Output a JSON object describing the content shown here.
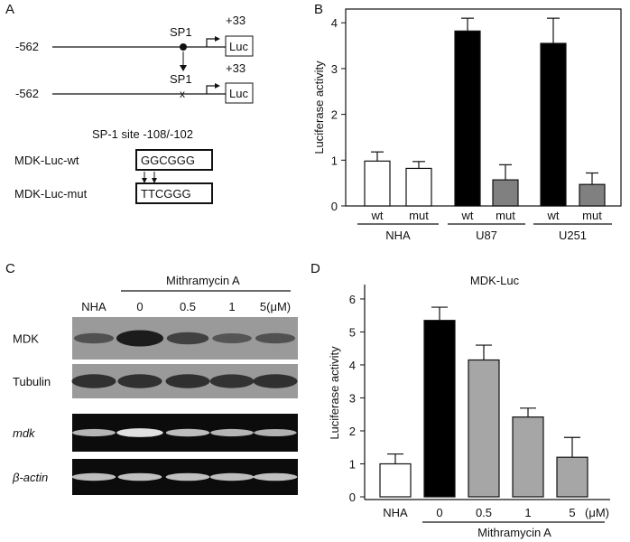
{
  "panels": {
    "A": {
      "letter": "A",
      "constructs": [
        {
          "start": "-562",
          "end": "+33",
          "site": "SP1",
          "reporter": "Luc",
          "mutated": false
        },
        {
          "start": "-562",
          "end": "+33",
          "site": "SP1",
          "reporter": "Luc",
          "mutated": true
        }
      ],
      "mut_mark": "x",
      "site_title": "SP-1 site -108/-102",
      "wt_label": "MDK-Luc-wt",
      "wt_seq": "GGCGGG",
      "mut_label": "MDK-Luc-mut",
      "mut_seq": "TTCGGG"
    },
    "B": {
      "letter": "B"
    },
    "C": {
      "letter": "C",
      "treatment": "Mithramycin A",
      "lanes": [
        "NHA",
        "0",
        "0.5",
        "1",
        "5(μM)"
      ],
      "rows": [
        "MDK",
        "Tubulin",
        "mdk",
        "β-actin"
      ],
      "colors": {
        "western_bg": "#9a9a9a",
        "western_band": "#1c1c1c",
        "gel_bg": "#0c0c0c",
        "gel_band": "#e8e8e8"
      },
      "western": {
        "MDK": [
          0.35,
          1.0,
          0.55,
          0.3,
          0.35
        ],
        "Tubulin": [
          0.75,
          0.75,
          0.75,
          0.72,
          0.75
        ]
      },
      "gel": {
        "mdk": [
          0.65,
          0.95,
          0.7,
          0.65,
          0.62
        ],
        "β-actin": [
          0.7,
          0.72,
          0.72,
          0.7,
          0.72
        ]
      }
    },
    "D": {
      "letter": "D"
    }
  },
  "chart_data": [
    {
      "panel": "B",
      "type": "bar",
      "ylabel": "Luciferase activity",
      "ylim": [
        0,
        4.3
      ],
      "yticks": [
        0,
        1,
        2,
        3,
        4
      ],
      "categories": [
        "wt",
        "mut",
        "wt",
        "mut",
        "wt",
        "mut"
      ],
      "groups": [
        {
          "label": "NHA",
          "members": [
            0,
            1
          ]
        },
        {
          "label": "U87",
          "members": [
            2,
            3
          ]
        },
        {
          "label": "U251",
          "members": [
            4,
            5
          ]
        }
      ],
      "values": [
        0.98,
        0.82,
        3.82,
        0.57,
        3.55,
        0.47
      ],
      "errors": [
        0.2,
        0.15,
        0.28,
        0.33,
        0.55,
        0.25
      ],
      "colors": [
        "#ffffff",
        "#ffffff",
        "#000000",
        "#808080",
        "#000000",
        "#808080"
      ]
    },
    {
      "panel": "D",
      "type": "bar",
      "title": "MDK-Luc",
      "ylabel": "Luciferase  activity",
      "ylim": [
        0,
        6.3
      ],
      "yticks": [
        0,
        1,
        2,
        3,
        4,
        5,
        6
      ],
      "categories": [
        "NHA",
        "0",
        "0.5",
        "1",
        "5"
      ],
      "unit_label": "(μM)",
      "xlabel": "Mithramycin A",
      "values": [
        1.0,
        5.35,
        4.15,
        2.42,
        1.2
      ],
      "errors": [
        0.3,
        0.4,
        0.45,
        0.27,
        0.6
      ],
      "colors": [
        "#ffffff",
        "#000000",
        "#a6a6a6",
        "#a6a6a6",
        "#a6a6a6"
      ]
    }
  ]
}
